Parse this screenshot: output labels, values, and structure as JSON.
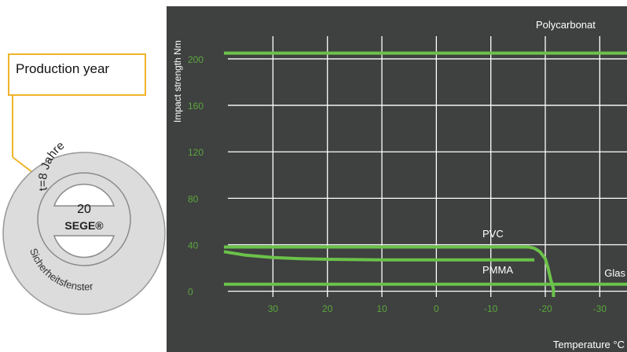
{
  "callout": {
    "label": "Production year"
  },
  "seal": {
    "outer_text_top": "t=8 Jahre",
    "outer_text_bottom": "Sicherheitsfenster",
    "year": "20",
    "brand": "SEGE®"
  },
  "colors": {
    "panel_bg": "#3f4040",
    "grid": "#ffffff",
    "series": "#6bc24a",
    "tick_label": "#5aa83c",
    "text": "#ffffff",
    "callout": "#f0b429"
  },
  "chart_data": {
    "type": "line",
    "ylabel": "Impact strength Nm",
    "xlabel": "Temperature °C",
    "x_ticks": [
      "30",
      "20",
      "10",
      "0",
      "-10",
      "-20",
      "-30"
    ],
    "y_ticks": [
      "0",
      "40",
      "80",
      "120",
      "160",
      "200"
    ],
    "xlim": [
      39,
      -35
    ],
    "ylim": [
      -5,
      225
    ],
    "grid": true,
    "series": [
      {
        "name": "Polycarbonat",
        "x": [
          39,
          -35
        ],
        "y": [
          205,
          205
        ]
      },
      {
        "name": "PVC",
        "x": [
          39,
          -16,
          -17,
          -18,
          -19,
          -20,
          -20.5,
          -21,
          -21.5,
          -21.5
        ],
        "y": [
          38,
          38,
          38,
          37,
          34,
          28,
          20,
          10,
          2,
          -5
        ]
      },
      {
        "name": "PMMA",
        "x": [
          39,
          35,
          30,
          25,
          20,
          10,
          0,
          -10,
          -18
        ],
        "y": [
          34,
          31,
          29,
          28,
          27.5,
          27,
          27,
          27,
          27
        ]
      },
      {
        "name": "Glas",
        "x": [
          39,
          -35
        ],
        "y": [
          6,
          6
        ]
      }
    ]
  }
}
